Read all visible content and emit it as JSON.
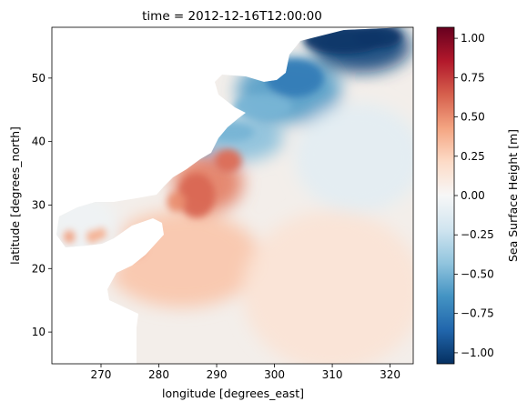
{
  "chart_data": {
    "type": "heatmap",
    "title": "time = 2012-12-16T12:00:00",
    "xlabel": "longitude [degrees_east]",
    "ylabel": "latitude [degrees_north]",
    "xlim": [
      261.5,
      324
    ],
    "ylim": [
      5,
      58
    ],
    "xticks": [
      270,
      280,
      290,
      300,
      310,
      320
    ],
    "yticks": [
      10,
      20,
      30,
      40,
      50
    ],
    "colorbar": {
      "label": "Sea Surface Height [m]",
      "range": [
        -1.07,
        1.07
      ],
      "ticks": [
        "1.00",
        "0.75",
        "0.50",
        "0.25",
        "0.00",
        "−0.25",
        "−0.50",
        "−0.75",
        "−1.00"
      ],
      "tick_values": [
        1.0,
        0.75,
        0.5,
        0.25,
        0.0,
        -0.25,
        -0.5,
        -0.75,
        -1.0
      ],
      "colormap": "RdBu_r",
      "stops": [
        "#053061",
        "#2166ac",
        "#4393c3",
        "#92c5de",
        "#d1e5f0",
        "#f7f7f7",
        "#fddbc7",
        "#f4a582",
        "#d6604d",
        "#b2182b",
        "#67001f"
      ]
    },
    "field_summary": {
      "lon_range": [
        262,
        324
      ],
      "lat_range": [
        5,
        58
      ],
      "regions": [
        {
          "lon": [
            308,
            322
          ],
          "lat": [
            52,
            58
          ],
          "value": -1.0
        },
        {
          "lon": [
            295,
            310
          ],
          "lat": [
            44,
            52
          ],
          "value": -0.6
        },
        {
          "lon": [
            287,
            300
          ],
          "lat": [
            38,
            43
          ],
          "value": -0.45
        },
        {
          "lon": [
            284,
            293
          ],
          "lat": [
            30,
            37
          ],
          "value": 0.55
        },
        {
          "lon": [
            272,
            296
          ],
          "lat": [
            15,
            28
          ],
          "value": 0.3
        },
        {
          "lon": [
            262,
            272
          ],
          "lat": [
            18,
            31
          ],
          "value": -0.05
        },
        {
          "lon": [
            305,
            324
          ],
          "lat": [
            30,
            45
          ],
          "value": -0.12
        },
        {
          "lon": [
            296,
            324
          ],
          "lat": [
            5,
            28
          ],
          "value": 0.15
        }
      ]
    }
  }
}
